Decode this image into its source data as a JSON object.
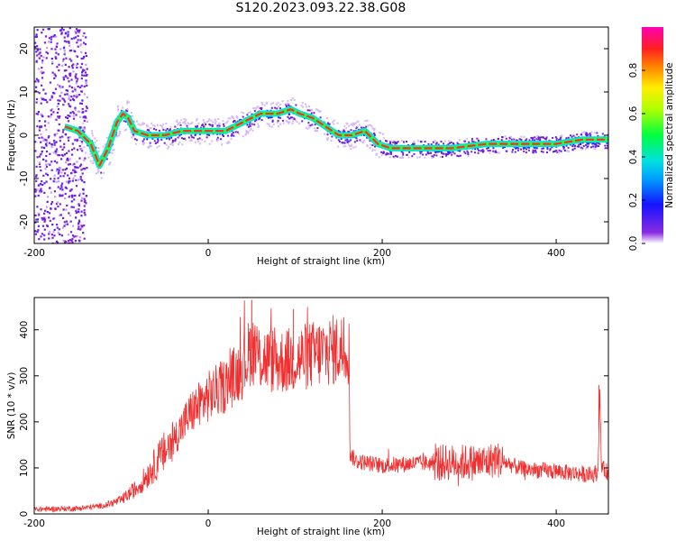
{
  "title": "S120.2023.093.22.38.G08",
  "colors": {
    "snr_line": "#f03030",
    "axes": "#000000",
    "background": "#ffffff"
  },
  "chart_data": [
    {
      "type": "heatmap",
      "name": "spectrogram",
      "xlabel": "Height of straight line (km)",
      "ylabel": "Frequency (Hz)",
      "xlim": [
        -200,
        460
      ],
      "ylim": [
        -25,
        25
      ],
      "xticks": [
        -200,
        0,
        200,
        400
      ],
      "yticks": [
        -20,
        -10,
        0,
        10,
        20
      ],
      "colorbar": {
        "label": "Normalized spectral amplitude",
        "range": [
          0,
          1
        ],
        "ticks": [
          "0.0",
          "0.2",
          "0.4",
          "0.6",
          "0.8"
        ],
        "colormap": "rainbow (purple-blue-cyan-green-yellow-red-magenta)"
      },
      "ridge": {
        "x": [
          -165,
          -150,
          -135,
          -125,
          -115,
          -105,
          -98,
          -92,
          -85,
          -70,
          -50,
          -30,
          0,
          20,
          40,
          60,
          80,
          95,
          105,
          120,
          135,
          150,
          165,
          180,
          195,
          210,
          240,
          280,
          320,
          360,
          400,
          430,
          460
        ],
        "freq": [
          2,
          1,
          -2,
          -7,
          -3,
          3,
          5,
          4,
          1,
          0,
          0,
          1,
          1,
          1,
          3,
          5,
          5,
          6,
          5,
          4,
          2,
          0,
          0,
          1,
          -2,
          -3,
          -3,
          -3,
          -2,
          -2,
          -2,
          -1,
          -1
        ]
      }
    },
    {
      "type": "line",
      "name": "snr",
      "xlabel": "Height of straight line (km)",
      "ylabel": "SNR (10 * v/v)",
      "xlim": [
        -200,
        460
      ],
      "ylim": [
        0,
        470
      ],
      "xticks": [
        -200,
        0,
        200,
        400
      ],
      "yticks": [
        0,
        100,
        200,
        300,
        400
      ],
      "envelope": {
        "x": [
          -200,
          -150,
          -120,
          -100,
          -80,
          -60,
          -40,
          -20,
          0,
          20,
          40,
          50,
          60,
          80,
          100,
          120,
          140,
          160,
          162,
          163,
          170,
          200,
          240,
          280,
          320,
          330,
          360,
          400,
          440,
          448,
          450,
          452,
          460
        ],
        "y": [
          10,
          12,
          18,
          30,
          60,
          110,
          160,
          220,
          255,
          280,
          320,
          360,
          340,
          330,
          335,
          345,
          355,
          360,
          350,
          130,
          115,
          105,
          110,
          112,
          112,
          120,
          98,
          92,
          85,
          90,
          280,
          100,
          90
        ]
      },
      "spikes": [
        {
          "x": 50,
          "y": 465
        },
        {
          "x": 98,
          "y": 445
        },
        {
          "x": 449,
          "y": 280
        }
      ]
    }
  ]
}
